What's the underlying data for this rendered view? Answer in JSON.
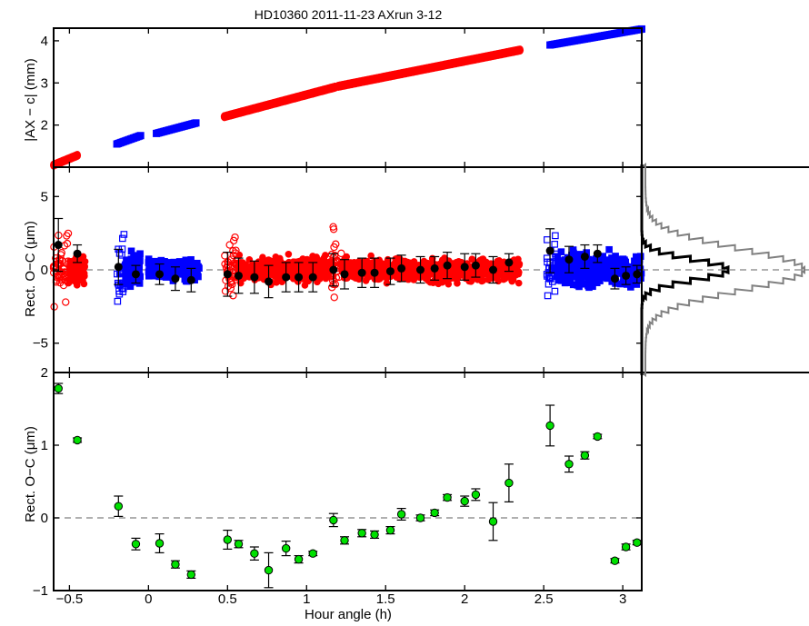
{
  "chart_data": {
    "title": "HD10360 2011-11-23  AXrun 3-12",
    "type": "scatter",
    "xlabel": "Hour angle (h)",
    "xlim": [
      -0.6,
      3.12
    ],
    "xticks": [
      -0.5,
      0,
      0.5,
      1,
      1.5,
      2,
      2.5,
      3
    ],
    "xtick_labels": [
      "−0.5",
      "0",
      "0.5",
      "1",
      "1.5",
      "2",
      "2.5",
      "3"
    ],
    "colors": {
      "red": "#ff0000",
      "blue": "#0000ff",
      "green": "#00e000",
      "black": "#000000",
      "gray": "#808080"
    },
    "panels": [
      {
        "id": "separation",
        "ylabel": "|AX − c| (mm)",
        "ylim": [
          1,
          4.3
        ],
        "yticks": [
          2,
          3,
          4
        ],
        "ytick_labels": [
          "2",
          "3",
          "4"
        ],
        "segments": [
          {
            "series": "red",
            "x": [
              -0.6,
              -0.45
            ],
            "y": [
              1.05,
              1.28
            ]
          },
          {
            "series": "blue",
            "x": [
              -0.2,
              -0.05
            ],
            "y": [
              1.55,
              1.75
            ]
          },
          {
            "series": "blue",
            "x": [
              0.05,
              0.3
            ],
            "y": [
              1.8,
              2.05
            ]
          },
          {
            "series": "red",
            "x": [
              0.48,
              1.18
            ],
            "y": [
              2.2,
              2.9
            ]
          },
          {
            "series": "red",
            "x": [
              1.2,
              2.35
            ],
            "y": [
              2.92,
              3.78
            ]
          },
          {
            "series": "blue",
            "x": [
              2.54,
              3.12
            ],
            "y": [
              3.9,
              4.28
            ]
          }
        ]
      },
      {
        "id": "raw",
        "ylabel": "Rect. O−C (μm)",
        "ylim": [
          -7,
          7
        ],
        "yticks": [
          -5,
          0,
          5
        ],
        "ytick_labels": [
          "−5",
          "0",
          "5"
        ],
        "zero_line": true,
        "groups": [
          {
            "series": "red",
            "x": [
              -0.6,
              -0.5
            ],
            "spread": 2.4,
            "open": true
          },
          {
            "series": "red",
            "x": [
              -0.5,
              -0.4
            ],
            "spread": 1.0,
            "open": false
          },
          {
            "series": "blue",
            "x": [
              -0.2,
              -0.15
            ],
            "spread": 3.0,
            "open": true
          },
          {
            "series": "blue",
            "x": [
              -0.15,
              -0.05
            ],
            "spread": 1.2,
            "open": false
          },
          {
            "series": "blue",
            "x": [
              0.0,
              0.32
            ],
            "spread": 0.8,
            "open": false
          },
          {
            "series": "red",
            "x": [
              0.48,
              0.56
            ],
            "spread": 2.6,
            "open": true
          },
          {
            "series": "red",
            "x": [
              0.56,
              1.15
            ],
            "spread": 1.0,
            "open": false
          },
          {
            "series": "red",
            "x": [
              1.15,
              1.22
            ],
            "spread": 2.4,
            "open": true
          },
          {
            "series": "red",
            "x": [
              1.22,
              2.35
            ],
            "spread": 0.9,
            "open": false
          },
          {
            "series": "blue",
            "x": [
              2.52,
              2.58
            ],
            "spread": 3.2,
            "open": true
          },
          {
            "series": "blue",
            "x": [
              2.58,
              3.12
            ],
            "spread": 1.3,
            "open": false
          }
        ],
        "binned": {
          "x": [
            -0.57,
            -0.45,
            -0.19,
            -0.08,
            0.07,
            0.17,
            0.27,
            0.5,
            0.57,
            0.67,
            0.76,
            0.87,
            0.95,
            1.04,
            1.17,
            1.24,
            1.35,
            1.43,
            1.53,
            1.6,
            1.72,
            1.81,
            1.89,
            2.0,
            2.07,
            2.18,
            2.28,
            2.54,
            2.66,
            2.76,
            2.84,
            2.95,
            3.02,
            3.09
          ],
          "y": [
            1.7,
            1.1,
            0.2,
            -0.3,
            -0.3,
            -0.6,
            -0.7,
            -0.3,
            -0.4,
            -0.5,
            -0.8,
            -0.5,
            -0.5,
            -0.5,
            0.0,
            -0.3,
            -0.2,
            -0.2,
            -0.1,
            0.1,
            0.0,
            0.1,
            0.3,
            0.2,
            0.3,
            0.0,
            0.5,
            1.3,
            0.7,
            0.9,
            1.1,
            -0.6,
            -0.4,
            -0.3
          ],
          "err": [
            1.8,
            0.6,
            1.2,
            0.6,
            0.7,
            0.8,
            0.8,
            1.5,
            1.2,
            1.1,
            1.1,
            1.0,
            1.0,
            1.0,
            1.1,
            1.0,
            1.0,
            1.0,
            0.9,
            0.9,
            0.9,
            0.8,
            0.9,
            0.9,
            0.8,
            0.9,
            0.6,
            1.5,
            0.9,
            0.8,
            0.6,
            0.7,
            0.6,
            0.6
          ]
        },
        "histogram": {
          "bins": [
            "outer",
            "inner"
          ]
        }
      },
      {
        "id": "binned",
        "ylabel": "Rect. O−C (μm)",
        "ylim": [
          -1,
          2
        ],
        "yticks": [
          -1,
          0,
          1,
          2
        ],
        "ytick_labels": [
          "−1",
          "0",
          "1",
          "2"
        ],
        "zero_line": true,
        "points": {
          "x": [
            -0.57,
            -0.45,
            -0.19,
            -0.08,
            0.07,
            0.17,
            0.27,
            0.5,
            0.57,
            0.67,
            0.76,
            0.87,
            0.95,
            1.04,
            1.17,
            1.24,
            1.35,
            1.43,
            1.53,
            1.6,
            1.72,
            1.81,
            1.89,
            2.0,
            2.07,
            2.18,
            2.28,
            2.54,
            2.66,
            2.76,
            2.84,
            2.95,
            3.02,
            3.09
          ],
          "y": [
            1.78,
            1.07,
            0.16,
            -0.36,
            -0.35,
            -0.64,
            -0.78,
            -0.3,
            -0.36,
            -0.49,
            -0.72,
            -0.42,
            -0.57,
            -0.49,
            -0.03,
            -0.31,
            -0.21,
            -0.23,
            -0.17,
            0.05,
            0.0,
            0.07,
            0.28,
            0.23,
            0.32,
            -0.05,
            0.48,
            1.27,
            0.74,
            0.86,
            1.12,
            -0.59,
            -0.4,
            -0.34
          ],
          "err": [
            0.07,
            0.03,
            0.14,
            0.08,
            0.13,
            0.05,
            0.05,
            0.13,
            0.05,
            0.09,
            0.24,
            0.1,
            0.05,
            0.03,
            0.09,
            0.05,
            0.05,
            0.05,
            0.05,
            0.08,
            0.04,
            0.04,
            0.04,
            0.07,
            0.08,
            0.26,
            0.26,
            0.28,
            0.11,
            0.05,
            0.03,
            0.03,
            0.04,
            0.03
          ]
        }
      }
    ]
  }
}
